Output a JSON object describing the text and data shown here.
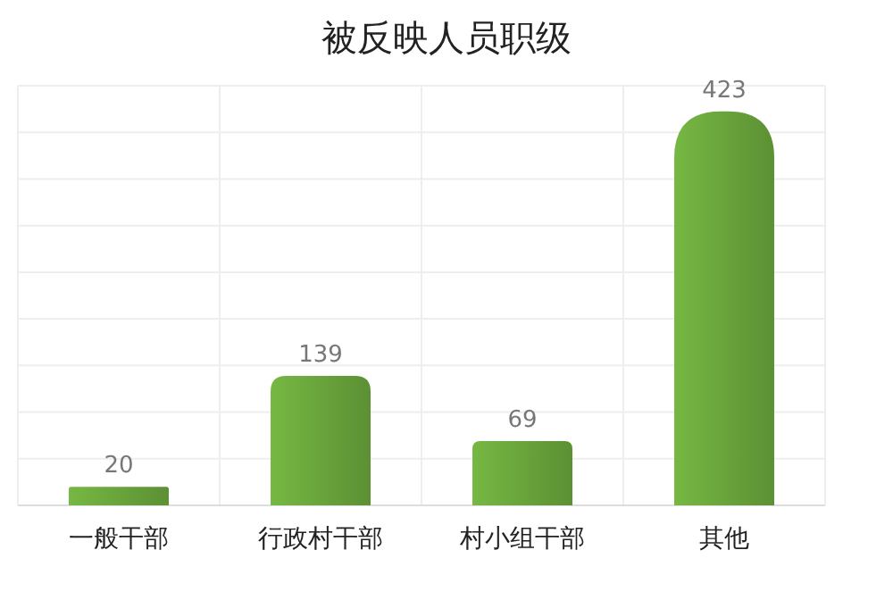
{
  "chart_data": {
    "type": "bar",
    "title": "被反映人员职级",
    "categories": [
      "一般干部",
      "行政村干部",
      "村小组干部",
      "其他"
    ],
    "values": [
      20,
      139,
      69,
      423
    ],
    "color": "#76b843",
    "data_labels": true,
    "grid": true
  }
}
